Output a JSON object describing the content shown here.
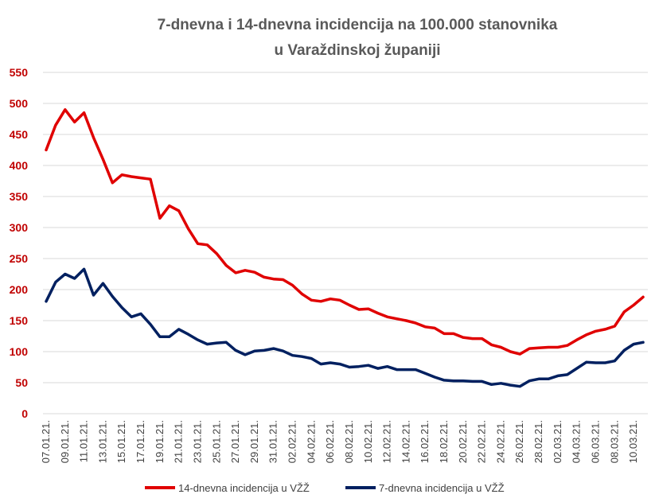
{
  "chart_data": {
    "type": "line",
    "title_lines": [
      "7-dnevna i 14-dnevna incidencija na 100.000 stanovnika",
      "u Varaždinskoj županiji"
    ],
    "xlabel": "",
    "ylabel": "",
    "ylim": [
      0,
      550
    ],
    "yticks": [
      0,
      50,
      100,
      150,
      200,
      250,
      300,
      350,
      400,
      450,
      500,
      550
    ],
    "grid": true,
    "legend_position": "bottom",
    "x": [
      "07.01.21.",
      "08.01.21.",
      "09.01.21.",
      "10.01.21.",
      "11.01.21.",
      "12.01.21.",
      "13.01.21.",
      "14.01.21.",
      "15.01.21.",
      "16.01.21.",
      "17.01.21.",
      "18.01.21.",
      "19.01.21.",
      "20.01.21.",
      "21.01.21.",
      "22.01.21.",
      "23.01.21.",
      "24.01.21.",
      "25.01.21.",
      "26.01.21.",
      "27.01.21.",
      "28.01.21.",
      "29.01.21.",
      "30.01.21.",
      "31.01.21.",
      "01.02.21.",
      "02.02.21.",
      "03.02.21.",
      "04.02.21.",
      "05.02.21.",
      "06.02.21.",
      "07.02.21.",
      "08.02.21.",
      "09.02.21.",
      "10.02.21.",
      "11.02.21.",
      "12.02.21.",
      "13.02.21.",
      "14.02.21.",
      "15.02.21.",
      "16.02.21.",
      "17.02.21.",
      "18.02.21.",
      "19.02.21.",
      "20.02.21.",
      "21.02.21.",
      "22.02.21.",
      "23.02.21.",
      "24.02.21.",
      "25.02.21.",
      "26.02.21.",
      "27.02.21.",
      "28.02.21.",
      "01.03.21.",
      "02.03.21.",
      "03.03.21.",
      "04.03.21.",
      "05.03.21.",
      "06.03.21.",
      "07.03.21.",
      "08.03.21.",
      "09.03.21.",
      "10.03.21.",
      "11.03.21."
    ],
    "x_tick_labels": [
      "07.01.21.",
      "09.01.21.",
      "11.01.21.",
      "13.01.21.",
      "15.01.21.",
      "17.01.21.",
      "19.01.21.",
      "21.01.21.",
      "23.01.21.",
      "25.01.21.",
      "27.01.21.",
      "29.01.21.",
      "31.01.21.",
      "02.02.21.",
      "04.02.21.",
      "06.02.21.",
      "08.02.21.",
      "10.02.21.",
      "12.02.21.",
      "14.02.21.",
      "16.02.21.",
      "18.02.21.",
      "20.02.21.",
      "22.02.21.",
      "24.02.21.",
      "26.02.21.",
      "28.02.21.",
      "02.03.21.",
      "04.03.21.",
      "06.03.21.",
      "08.03.21.",
      "10.03.21."
    ],
    "series": [
      {
        "name": "14-dnevna incidencija u VŽŽ",
        "color": "#e00000",
        "values": [
          425,
          465,
          490,
          470,
          485,
          445,
          410,
          372,
          385,
          382,
          380,
          378,
          315,
          335,
          327,
          298,
          274,
          272,
          258,
          239,
          227,
          231,
          228,
          220,
          217,
          216,
          207,
          193,
          183,
          181,
          185,
          183,
          175,
          168,
          169,
          162,
          156,
          153,
          150,
          146,
          140,
          138,
          129,
          129,
          123,
          121,
          121,
          111,
          107,
          100,
          96,
          105,
          106,
          107,
          107,
          110,
          119,
          127,
          133,
          136,
          141,
          164,
          175,
          188
        ]
      },
      {
        "name": "7-dnevna incidencija u VŽŽ",
        "color": "#002060",
        "values": [
          181,
          212,
          225,
          218,
          233,
          191,
          210,
          189,
          171,
          156,
          161,
          144,
          124,
          124,
          136,
          128,
          119,
          112,
          114,
          115,
          102,
          95,
          101,
          102,
          105,
          101,
          94,
          92,
          89,
          80,
          82,
          80,
          75,
          76,
          78,
          73,
          76,
          71,
          71,
          71,
          65,
          59,
          54,
          53,
          53,
          52,
          52,
          47,
          49,
          46,
          44,
          53,
          56,
          56,
          61,
          63,
          73,
          83,
          82,
          82,
          85,
          102,
          112,
          115
        ]
      }
    ]
  }
}
